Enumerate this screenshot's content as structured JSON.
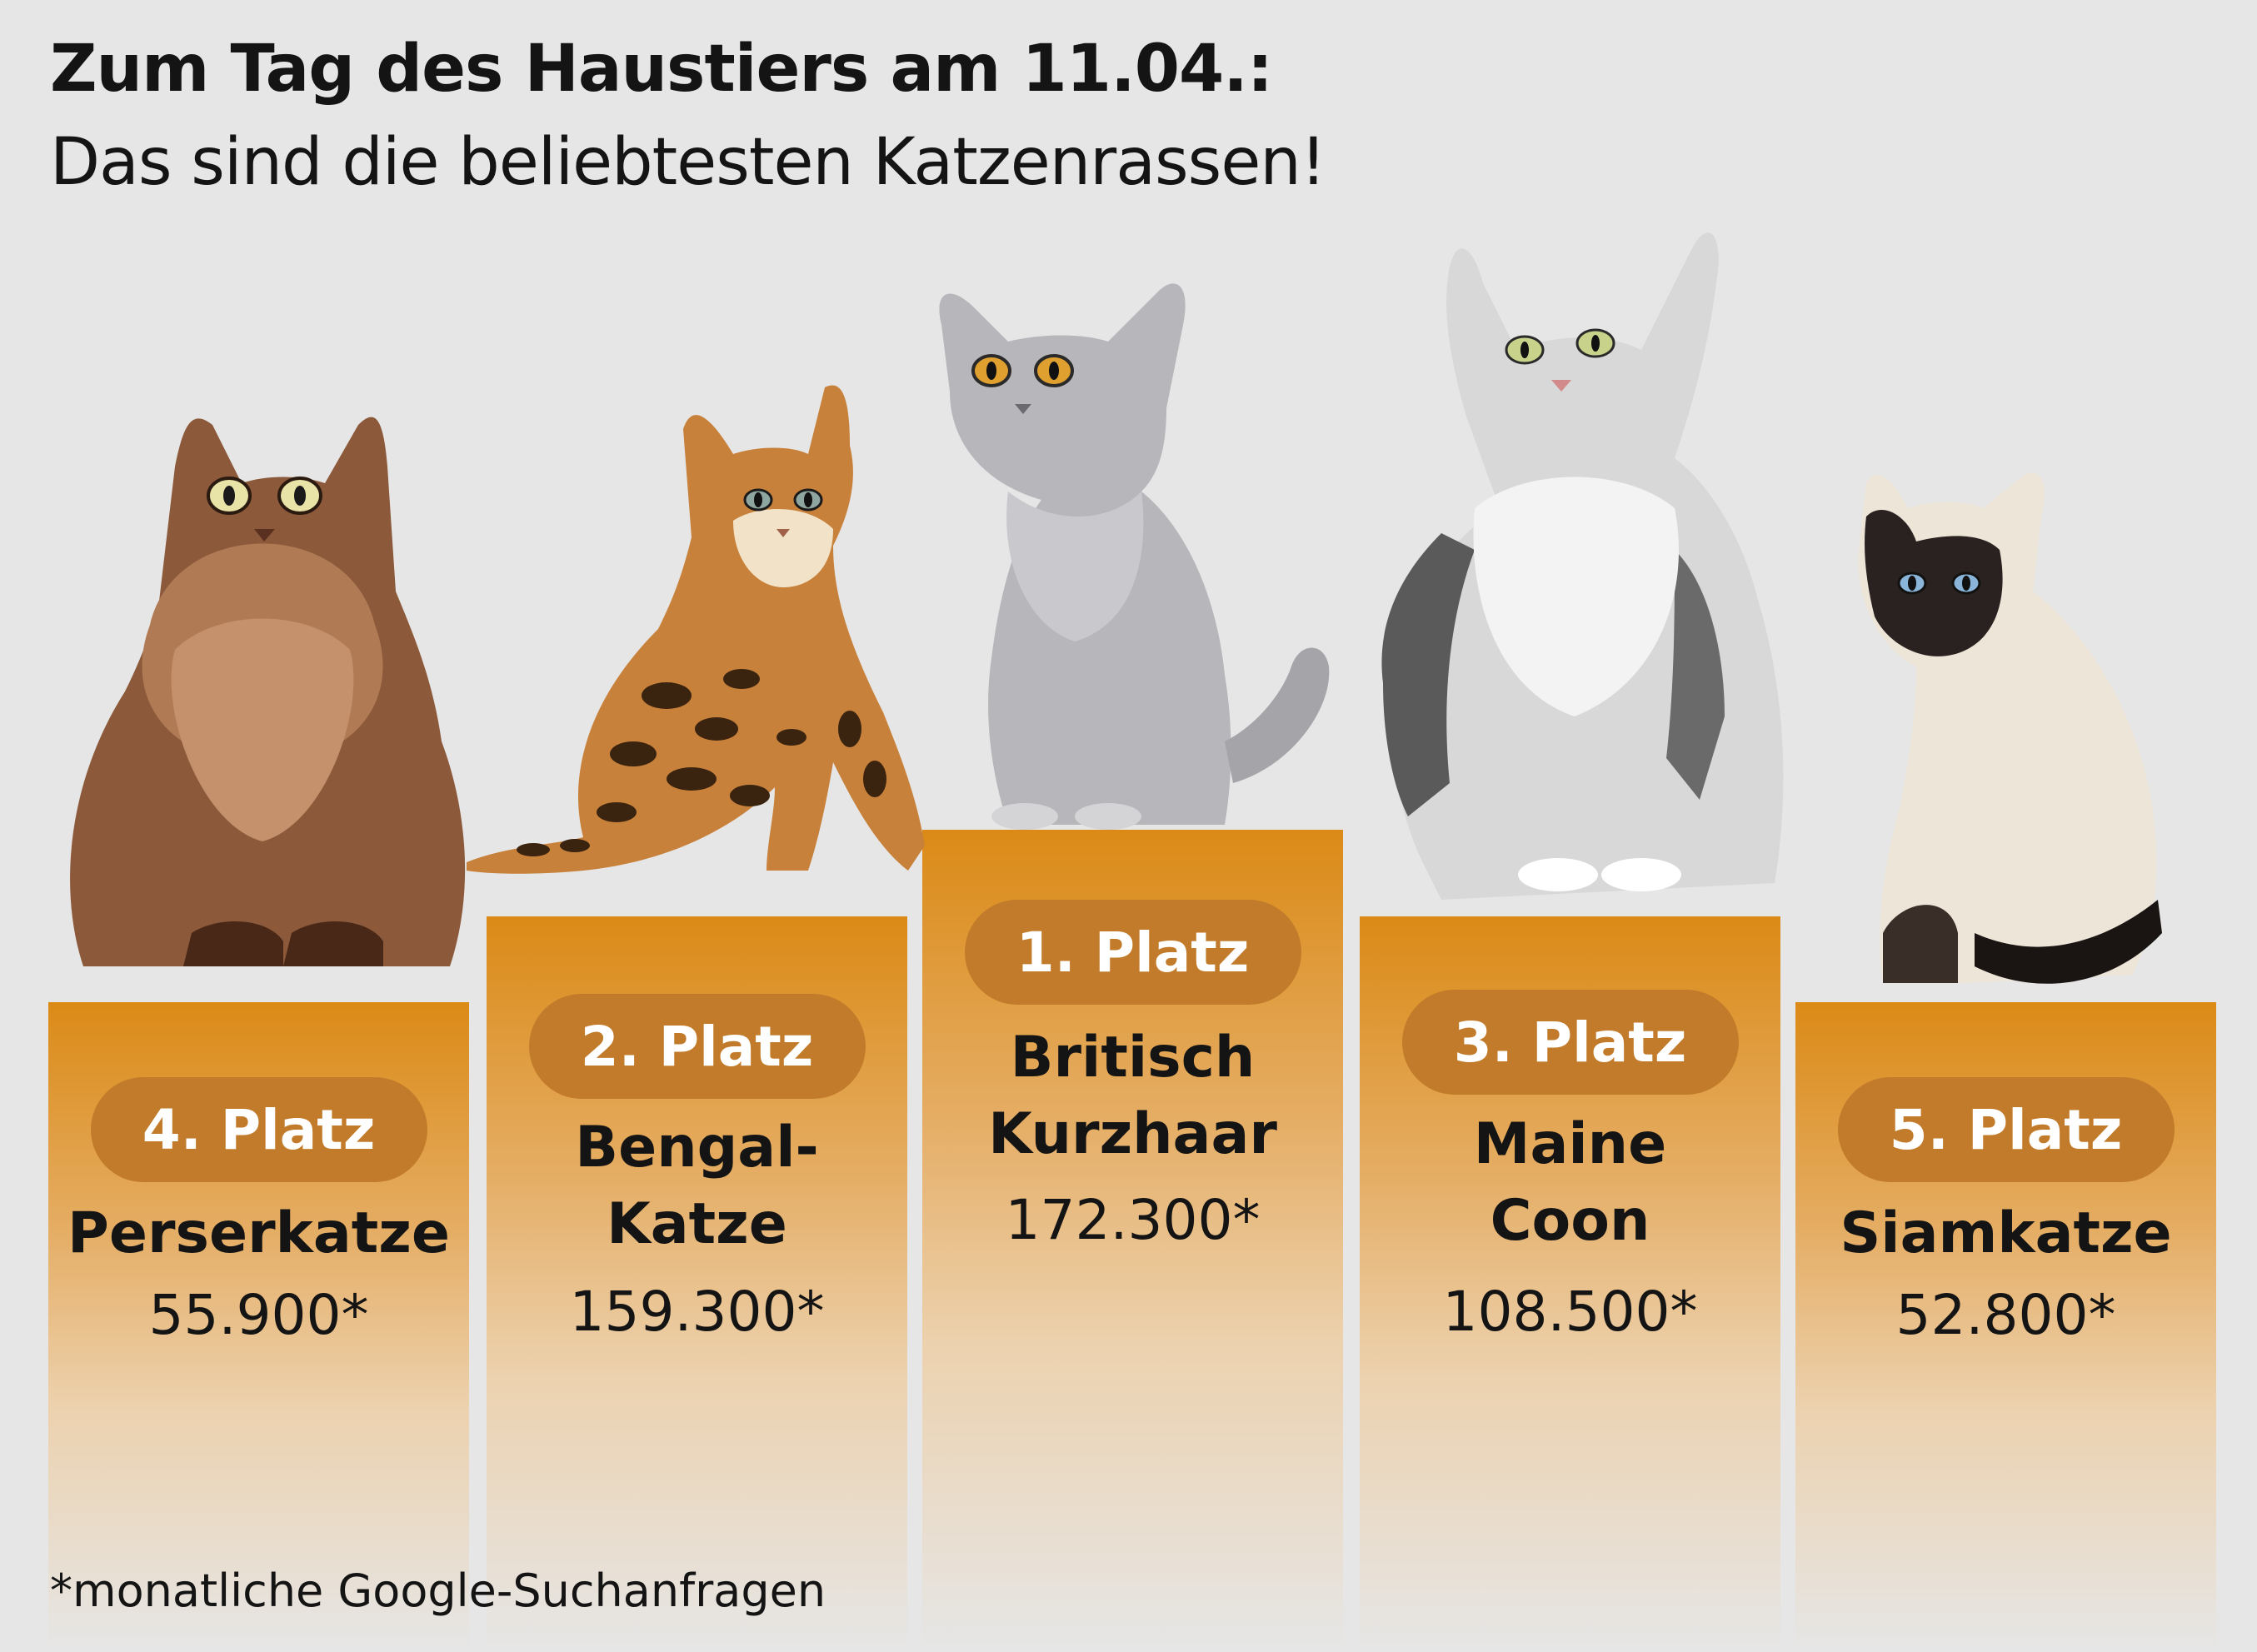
{
  "header": {
    "title": "Zum Tag des Haustiers am 11.04.:",
    "subtitle": "Das sind die beliebtesten Katzenrassen!"
  },
  "footnote": "*monatliche Google-Suchanfragen",
  "colors": {
    "background": "#e6e6e6",
    "pedestal_top": "#db8a16",
    "badge": "#c27b2a",
    "badge_text": "#ffffff",
    "text": "#141414"
  },
  "chart_data": {
    "type": "bar",
    "title": "Zum Tag des Haustiers am 11.04.:",
    "subtitle": "Das sind die beliebtesten Katzenrassen!",
    "categories": [
      "Perserkatze",
      "Bengal-Katze",
      "Britisch Kurzhaar",
      "Maine Coon",
      "Siamkatze"
    ],
    "values": [
      55900,
      159300,
      172300,
      108500,
      52800
    ],
    "ranks": [
      4,
      2,
      1,
      3,
      5
    ],
    "bars": [
      {
        "rank_label": "4. Platz",
        "breed_lines": [
          "Perserkatze"
        ],
        "value_label": "55.900*",
        "value": 55900,
        "icon": "persian-cat-icon"
      },
      {
        "rank_label": "2. Platz",
        "breed_lines": [
          "Bengal-",
          "Katze"
        ],
        "value_label": "159.300*",
        "value": 159300,
        "icon": "bengal-cat-icon"
      },
      {
        "rank_label": "1. Platz",
        "breed_lines": [
          "Britisch",
          "Kurzhaar"
        ],
        "value_label": "172.300*",
        "value": 172300,
        "icon": "british-shorthair-cat-icon"
      },
      {
        "rank_label": "3. Platz",
        "breed_lines": [
          "Maine",
          "Coon"
        ],
        "value_label": "108.500*",
        "value": 108500,
        "icon": "maine-coon-cat-icon"
      },
      {
        "rank_label": "5. Platz",
        "breed_lines": [
          "Siamkatze"
        ],
        "value_label": "52.800*",
        "value": 52800,
        "icon": "siamese-cat-icon"
      }
    ],
    "legend": "none",
    "grid": false
  }
}
